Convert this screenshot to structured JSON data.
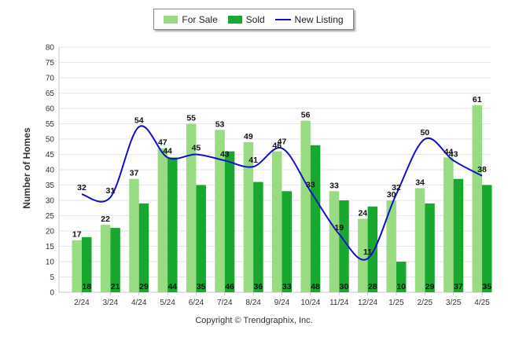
{
  "chart_data": {
    "type": "bar",
    "categories": [
      "2/24",
      "3/24",
      "4/24",
      "5/24",
      "6/24",
      "7/24",
      "8/24",
      "9/24",
      "10/24",
      "11/24",
      "12/24",
      "1/25",
      "2/25",
      "3/25",
      "4/25"
    ],
    "series": [
      {
        "name": "For Sale",
        "kind": "bar",
        "color": "#99db82",
        "values": [
          17,
          22,
          37,
          47,
          55,
          53,
          49,
          46,
          56,
          33,
          24,
          30,
          34,
          44,
          61
        ]
      },
      {
        "name": "Sold",
        "kind": "bar",
        "color": "#18a830",
        "values": [
          18,
          21,
          29,
          44,
          35,
          46,
          36,
          33,
          48,
          30,
          28,
          10,
          29,
          37,
          35
        ]
      },
      {
        "name": "New Listing",
        "kind": "line",
        "color": "#1010cc",
        "values": [
          32,
          31,
          54,
          44,
          45,
          43,
          41,
          47,
          33,
          19,
          11,
          32,
          50,
          43,
          38
        ]
      }
    ],
    "ylabel": "Number of Homes",
    "xlabel": "",
    "ylim": [
      0,
      80
    ],
    "yticks": [
      0,
      5,
      10,
      15,
      20,
      25,
      30,
      35,
      40,
      45,
      50,
      55,
      60,
      65,
      70,
      75,
      80
    ],
    "grid": true,
    "legend_position": "top"
  },
  "footer": {
    "copyright": "Copyright © Trendgraphix, Inc."
  }
}
